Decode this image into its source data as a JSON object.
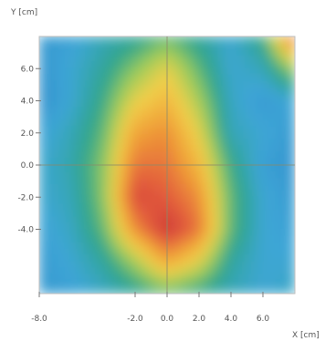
{
  "chart_data": {
    "type": "heatmap",
    "title": "",
    "xlabel": "X [cm]",
    "ylabel": "Y [cm]",
    "xlim": [
      -8.0,
      8.0
    ],
    "ylim": [
      -8.0,
      8.0
    ],
    "x_ticks": [
      {
        "value": -8.0,
        "label": "-8.0"
      },
      {
        "value": -2.0,
        "label": "-2.0"
      },
      {
        "value": 0.0,
        "label": "0.0"
      },
      {
        "value": 2.0,
        "label": "2.0"
      },
      {
        "value": 4.0,
        "label": "4.0"
      },
      {
        "value": 6.0,
        "label": "6.0"
      }
    ],
    "y_ticks": [
      {
        "value": 6.0,
        "label": "6.0"
      },
      {
        "value": 4.0,
        "label": "4.0"
      },
      {
        "value": 2.0,
        "label": "2.0"
      },
      {
        "value": 0.0,
        "label": "0.0"
      },
      {
        "value": -2.0,
        "label": "-2.0"
      },
      {
        "value": -4.0,
        "label": "-4.0"
      }
    ],
    "crosshair": {
      "x": 0.0,
      "y": 0.0
    },
    "colormap": [
      "#2d7fc6",
      "#3da6d6",
      "#2fa58c",
      "#9ccc5a",
      "#f2d04a",
      "#f0a038",
      "#e1583c",
      "#c22a30"
    ],
    "grid_x": [
      -8,
      -6,
      -4,
      -2,
      0,
      2,
      4,
      6,
      8
    ],
    "grid_y": [
      8,
      6,
      4,
      2,
      0,
      -2,
      -4,
      -6,
      -8
    ],
    "z": [
      [
        0.1,
        0.12,
        0.2,
        0.25,
        0.35,
        0.25,
        0.15,
        0.3,
        0.9
      ],
      [
        0.08,
        0.15,
        0.25,
        0.4,
        0.55,
        0.35,
        0.15,
        0.2,
        0.45
      ],
      [
        0.06,
        0.15,
        0.3,
        0.55,
        0.65,
        0.45,
        0.18,
        0.1,
        0.15
      ],
      [
        0.12,
        0.2,
        0.35,
        0.7,
        0.75,
        0.55,
        0.2,
        0.15,
        0.1
      ],
      [
        0.15,
        0.22,
        0.4,
        0.8,
        0.8,
        0.65,
        0.3,
        0.12,
        0.08
      ],
      [
        0.15,
        0.2,
        0.4,
        0.9,
        0.85,
        0.75,
        0.35,
        0.15,
        0.1
      ],
      [
        0.12,
        0.18,
        0.35,
        0.75,
        0.95,
        0.8,
        0.35,
        0.15,
        0.12
      ],
      [
        0.1,
        0.15,
        0.25,
        0.45,
        0.7,
        0.55,
        0.25,
        0.15,
        0.15
      ],
      [
        0.1,
        0.12,
        0.18,
        0.25,
        0.35,
        0.28,
        0.2,
        0.15,
        0.18
      ]
    ]
  }
}
